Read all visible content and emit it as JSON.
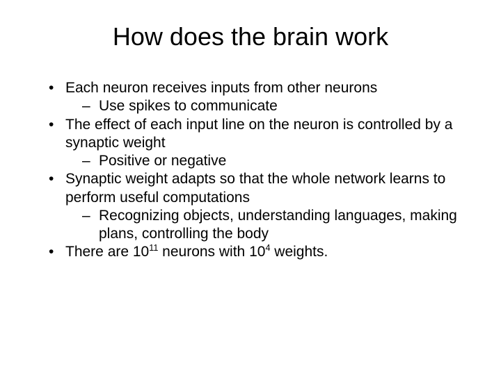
{
  "slide": {
    "title": "How does the brain work",
    "bullets": [
      {
        "text": "Each neuron receives inputs from other neurons",
        "sub": [
          {
            "text": "Use spikes to communicate"
          }
        ]
      },
      {
        "text": "The effect of each input line on the neuron is controlled by a synaptic weight",
        "sub": [
          {
            "text": "Positive or negative"
          }
        ]
      },
      {
        "text": "Synaptic weight adapts so that the whole network learns to perform useful computations",
        "sub": [
          {
            "text": "Recognizing objects, understanding languages, making plans, controlling the body"
          }
        ]
      },
      {
        "prefix": "There are 10",
        "sup1": "11",
        "mid": " neurons with 10",
        "sup2": "4",
        "suffix": " weights.",
        "sub": []
      }
    ],
    "colors": {
      "background": "#ffffff",
      "text": "#000000"
    },
    "typography": {
      "title_fontsize": 36,
      "body_fontsize": 21,
      "font_family": "Arial"
    }
  }
}
